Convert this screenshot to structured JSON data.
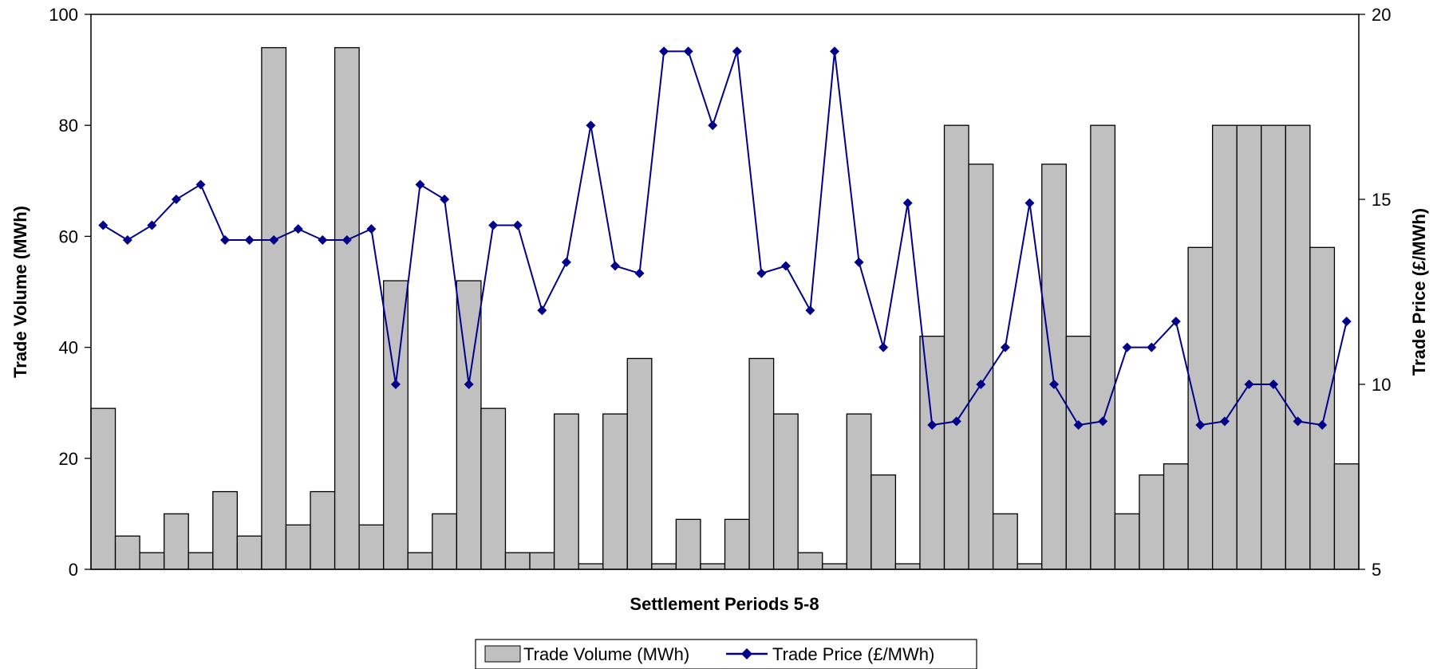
{
  "chart_data": {
    "type": "bar+line",
    "xlabel": "Settlement Periods 5-8",
    "ylabel_left": "Trade Volume (MWh)",
    "ylabel_right": "Trade Price (£/MWh)",
    "ylim_left": [
      0,
      100
    ],
    "ylim_right": [
      5,
      20
    ],
    "yticks_left": [
      "0",
      "20",
      "40",
      "60",
      "80",
      "100"
    ],
    "yticks_right": [
      "5",
      "10",
      "15",
      "20"
    ],
    "grid": false,
    "legend_position": "bottom",
    "series": [
      {
        "name": "Trade Volume (MWh)",
        "type": "bar",
        "axis": "left",
        "color": "#c0c0c0",
        "values": [
          29,
          6,
          3,
          10,
          3,
          14,
          6,
          94,
          8,
          14,
          94,
          8,
          52,
          3,
          10,
          52,
          29,
          3,
          3,
          28,
          1,
          28,
          38,
          1,
          9,
          1,
          9,
          38,
          28,
          3,
          1,
          28,
          17,
          1,
          42,
          80,
          73,
          10,
          1,
          73,
          42,
          80,
          10,
          17,
          19,
          58,
          80,
          80,
          80,
          80,
          58,
          19
        ]
      },
      {
        "name": "Trade Price (£/MWh)",
        "type": "line",
        "axis": "right",
        "color": "#00008b",
        "values": [
          14.3,
          13.9,
          14.3,
          15.0,
          15.4,
          13.9,
          13.9,
          13.9,
          14.2,
          13.9,
          13.9,
          14.2,
          10.0,
          15.4,
          15.0,
          10.0,
          14.3,
          14.3,
          12.0,
          13.3,
          17.0,
          13.2,
          13.0,
          19.0,
          19.0,
          17.0,
          19.0,
          13.0,
          13.2,
          12.0,
          19.0,
          13.3,
          11.0,
          14.9,
          8.9,
          9.0,
          10.0,
          11.0,
          14.9,
          10.0,
          8.9,
          9.0,
          11.0,
          11.0,
          11.7,
          8.9,
          9.0,
          10.0,
          10.0,
          9.0,
          8.9,
          11.7
        ]
      }
    ]
  },
  "legend": {
    "bar_label": "Trade Volume (MWh)",
    "line_label": "Trade Price (£/MWh)"
  }
}
